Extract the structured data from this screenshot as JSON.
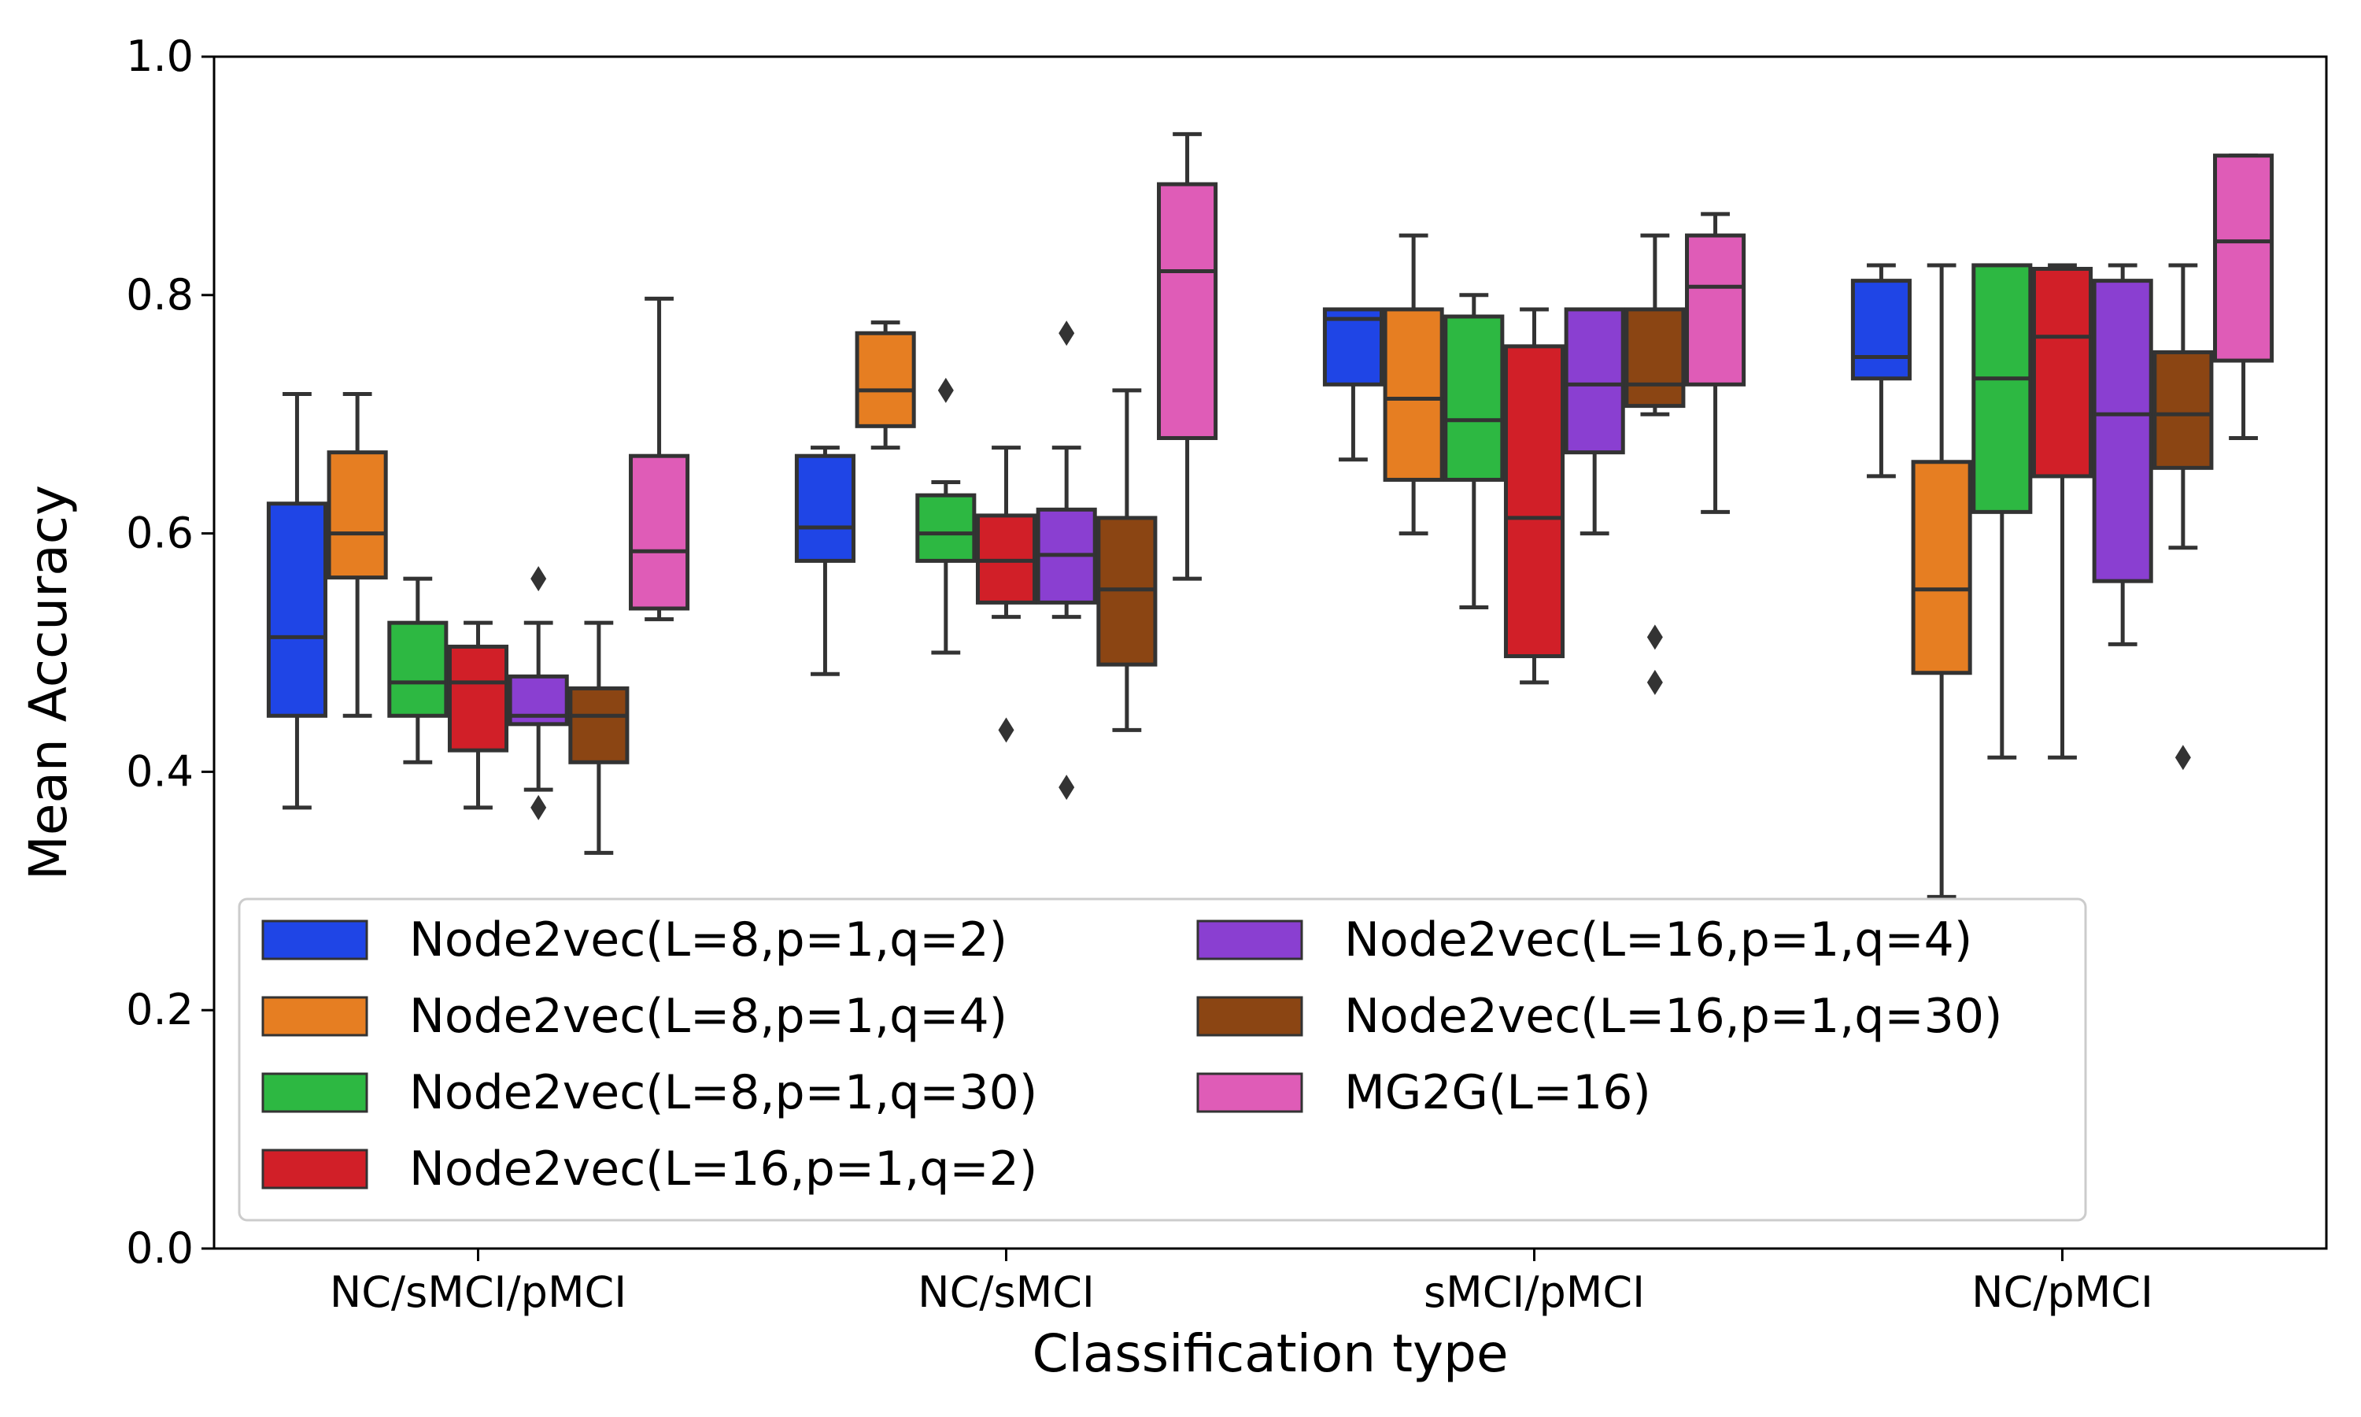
{
  "chart_data": {
    "type": "box",
    "xlabel": "Classification type",
    "ylabel": "Mean Accuracy",
    "ylim": [
      0.0,
      1.0
    ],
    "yticks": [
      "0.0",
      "0.2",
      "0.4",
      "0.6",
      "0.8",
      "1.0"
    ],
    "categories": [
      "NC/sMCI/pMCI",
      "NC/sMCI",
      "sMCI/pMCI",
      "NC/pMCI"
    ],
    "legend_placement": "lower-left",
    "legend_columns": 2,
    "grid": false,
    "series": [
      {
        "name": "Node2vec(L=8,p=1,q=2)",
        "color": "#1f45e6",
        "boxes": [
          {
            "whislo": 0.37,
            "q1": 0.447,
            "med": 0.513,
            "q3": 0.625,
            "whishi": 0.717,
            "fliers": []
          },
          {
            "whislo": 0.482,
            "q1": 0.577,
            "med": 0.605,
            "q3": 0.665,
            "whishi": 0.672,
            "fliers": []
          },
          {
            "whislo": 0.662,
            "q1": 0.725,
            "med": 0.78,
            "q3": 0.788,
            "whishi": 0.788,
            "fliers": []
          },
          {
            "whislo": 0.648,
            "q1": 0.73,
            "med": 0.748,
            "q3": 0.812,
            "whishi": 0.825,
            "fliers": []
          }
        ]
      },
      {
        "name": "Node2vec(L=8,p=1,q=4)",
        "color": "#e67e22",
        "boxes": [
          {
            "whislo": 0.447,
            "q1": 0.563,
            "med": 0.6,
            "q3": 0.668,
            "whishi": 0.717,
            "fliers": []
          },
          {
            "whislo": 0.672,
            "q1": 0.69,
            "med": 0.72,
            "q3": 0.768,
            "whishi": 0.777,
            "fliers": []
          },
          {
            "whislo": 0.6,
            "q1": 0.645,
            "med": 0.713,
            "q3": 0.788,
            "whishi": 0.85,
            "fliers": []
          },
          {
            "whislo": 0.295,
            "q1": 0.483,
            "med": 0.553,
            "q3": 0.66,
            "whishi": 0.825,
            "fliers": []
          }
        ]
      },
      {
        "name": "Node2vec(L=8,p=1,q=30)",
        "color": "#2db842",
        "boxes": [
          {
            "whislo": 0.408,
            "q1": 0.447,
            "med": 0.475,
            "q3": 0.525,
            "whishi": 0.562,
            "fliers": []
          },
          {
            "whislo": 0.5,
            "q1": 0.577,
            "med": 0.6,
            "q3": 0.632,
            "whishi": 0.643,
            "fliers": [
              0.72
            ]
          },
          {
            "whislo": 0.538,
            "q1": 0.645,
            "med": 0.695,
            "q3": 0.782,
            "whishi": 0.8,
            "fliers": []
          },
          {
            "whislo": 0.412,
            "q1": 0.618,
            "med": 0.73,
            "q3": 0.825,
            "whishi": 0.825,
            "fliers": []
          }
        ]
      },
      {
        "name": "Node2vec(L=16,p=1,q=2)",
        "color": "#d11f28",
        "boxes": [
          {
            "whislo": 0.37,
            "q1": 0.418,
            "med": 0.475,
            "q3": 0.505,
            "whishi": 0.525,
            "fliers": []
          },
          {
            "whislo": 0.53,
            "q1": 0.542,
            "med": 0.577,
            "q3": 0.615,
            "whishi": 0.672,
            "fliers": [
              0.435
            ]
          },
          {
            "whislo": 0.475,
            "q1": 0.497,
            "med": 0.613,
            "q3": 0.757,
            "whishi": 0.788,
            "fliers": []
          },
          {
            "whislo": 0.412,
            "q1": 0.648,
            "med": 0.765,
            "q3": 0.822,
            "whishi": 0.825,
            "fliers": []
          }
        ]
      },
      {
        "name": "Node2vec(L=16,p=1,q=4)",
        "color": "#8a3fd1",
        "boxes": [
          {
            "whislo": 0.385,
            "q1": 0.44,
            "med": 0.447,
            "q3": 0.48,
            "whishi": 0.525,
            "fliers": [
              0.562,
              0.37
            ]
          },
          {
            "whislo": 0.53,
            "q1": 0.542,
            "med": 0.582,
            "q3": 0.62,
            "whishi": 0.672,
            "fliers": [
              0.768,
              0.387
            ]
          },
          {
            "whislo": 0.6,
            "q1": 0.668,
            "med": 0.725,
            "q3": 0.788,
            "whishi": 0.788,
            "fliers": []
          },
          {
            "whislo": 0.507,
            "q1": 0.56,
            "med": 0.7,
            "q3": 0.812,
            "whishi": 0.825,
            "fliers": []
          }
        ]
      },
      {
        "name": "Node2vec(L=16,p=1,q=30)",
        "color": "#8b4513",
        "boxes": [
          {
            "whislo": 0.332,
            "q1": 0.408,
            "med": 0.447,
            "q3": 0.47,
            "whishi": 0.525,
            "fliers": []
          },
          {
            "whislo": 0.435,
            "q1": 0.49,
            "med": 0.553,
            "q3": 0.613,
            "whishi": 0.72,
            "fliers": []
          },
          {
            "whislo": 0.7,
            "q1": 0.707,
            "med": 0.725,
            "q3": 0.788,
            "whishi": 0.85,
            "fliers": [
              0.513,
              0.475
            ]
          },
          {
            "whislo": 0.588,
            "q1": 0.655,
            "med": 0.7,
            "q3": 0.752,
            "whishi": 0.825,
            "fliers": [
              0.412
            ]
          }
        ]
      },
      {
        "name": "MG2G(L=16)",
        "color": "#df5cb7",
        "boxes": [
          {
            "whislo": 0.528,
            "q1": 0.537,
            "med": 0.585,
            "q3": 0.665,
            "whishi": 0.797,
            "fliers": []
          },
          {
            "whislo": 0.562,
            "q1": 0.68,
            "med": 0.82,
            "q3": 0.893,
            "whishi": 0.935,
            "fliers": []
          },
          {
            "whislo": 0.618,
            "q1": 0.725,
            "med": 0.807,
            "q3": 0.85,
            "whishi": 0.868,
            "fliers": []
          },
          {
            "whislo": 0.68,
            "q1": 0.745,
            "med": 0.845,
            "q3": 0.917,
            "whishi": 0.917,
            "fliers": []
          }
        ]
      }
    ]
  }
}
